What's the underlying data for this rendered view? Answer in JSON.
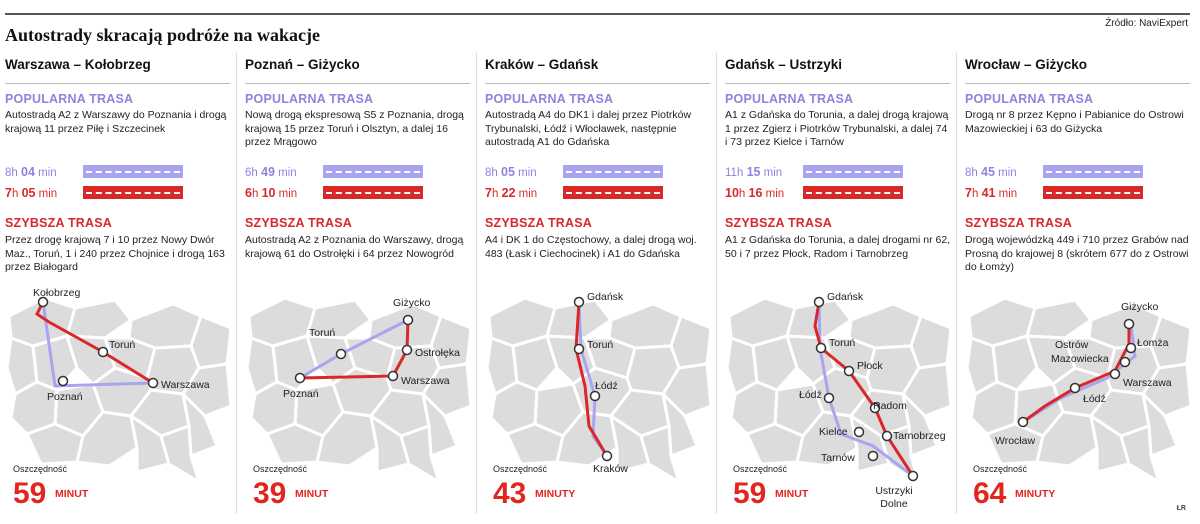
{
  "title": "Autostrady skracają podróże na wakacje",
  "source": "Źródło: NaviExpert",
  "credit": "ŁR",
  "labels": {
    "popular": "POPULARNA TRASA",
    "fast": "SZYBSZA TRASA",
    "savings": "Oszczędność"
  },
  "colors": {
    "popular": "#a9a4f0",
    "fast": "#d82828",
    "savings": "#e1261c",
    "map_tile": "#dcdcdc"
  },
  "routes": [
    {
      "title": "Warszawa – Kołobrzeg",
      "popular_desc": "Autostradą A2 z Warszawy do Poznania i drogą krajową 11 przez Piłę i Szczecinek",
      "popular_time": {
        "h": "8",
        "h_unit": "h",
        "m": "04",
        "m_unit": "min"
      },
      "fast_time": {
        "h": "7",
        "h_unit": "h",
        "m": "05",
        "m_unit": "min"
      },
      "fast_desc": "Przez drogę krajową 7 i 10 przez Nowy Dwór Maz., Toruń, 1 i 240 przez Chojnice i drogą 163 przez Białogard",
      "cities": [
        "Kołobrzeg",
        "Toruń",
        "Poznań",
        "Warszawa"
      ],
      "savings_value": "59",
      "savings_unit": "MINUT"
    },
    {
      "title": "Poznań – Giżycko",
      "popular_desc": "Nową drogą ekspresową S5 z Poznania, drogą krajową 15 przez Toruń i Olsztyn, a dalej 16 przez Mrągowo",
      "popular_time": {
        "h": "6",
        "h_unit": "h",
        "m": "49",
        "m_unit": "min"
      },
      "fast_time": {
        "h": "6",
        "h_unit": "h",
        "m": "10",
        "m_unit": "min"
      },
      "fast_desc": "Autostradą A2 z Poznania do Warszawy, drogą krajową 61 do Ostrołęki i 64 przez Nowogród",
      "cities": [
        "Giżycko",
        "Toruń",
        "Ostrołęka",
        "Poznań",
        "Warszawa"
      ],
      "savings_value": "39",
      "savings_unit": "MINUT"
    },
    {
      "title": "Kraków – Gdańsk",
      "popular_desc": "Autostradą A4 do DK1 i dalej przez Piotrków Trybunalski, Łódź i Włocławek, następnie autostradą A1 do Gdańska",
      "popular_time": {
        "h": "8",
        "h_unit": "h",
        "m": "05",
        "m_unit": "min"
      },
      "fast_time": {
        "h": "7",
        "h_unit": "h",
        "m": "22",
        "m_unit": "min"
      },
      "fast_desc": "A4 i DK 1 do Częstochowy, a dalej drogą woj. 483 (Łask i Ciechocinek) i A1 do Gdańska",
      "cities": [
        "Gdańsk",
        "Toruń",
        "Łódź",
        "Kraków"
      ],
      "savings_value": "43",
      "savings_unit": "MINUTY"
    },
    {
      "title": "Gdańsk – Ustrzyki",
      "popular_desc": "A1 z Gdańska do Torunia, a dalej drogą krajową 1 przez Zgierz i Piotrków Trybunalski, a dalej 74 i 73 przez Kielce i Tarnów",
      "popular_time": {
        "h": "11",
        "h_unit": "h",
        "m": "15",
        "m_unit": "min"
      },
      "fast_time": {
        "h": "10",
        "h_unit": "h",
        "m": "16",
        "m_unit": "min"
      },
      "fast_desc": "A1 z Gdańska do Torunia, a dalej drogami nr 62, 50 i 7 przez Płock, Radom i Tarnobrzeg",
      "cities": [
        "Gdańsk",
        "Toruń",
        "Płock",
        "Łódź",
        "Radom",
        "Kielce",
        "Tarnobrzeg",
        "Tarnów",
        "Ustrzyki",
        "Dolne"
      ],
      "savings_value": "59",
      "savings_unit": "MINUT"
    },
    {
      "title": "Wrocław – Giżycko",
      "popular_desc": "Drogą nr 8 przez Kępno i Pabianice do Ostrowi Mazowieckiej i 63 do Giżycka",
      "popular_time": {
        "h": "8",
        "h_unit": "h",
        "m": "45",
        "m_unit": "min"
      },
      "fast_time": {
        "h": "7",
        "h_unit": "h",
        "m": "41",
        "m_unit": "min"
      },
      "fast_desc": "Drogą wojewódzką 449 i 710 przez Grabów nad Prosną do krajowej 8 (skrótem 677 do z Ostrowi do Łomży)",
      "cities": [
        "Giżycko",
        "Ostrów",
        "Mazowiecka",
        "Łomża",
        "Warszawa",
        "Łódź",
        "Wrocław"
      ],
      "savings_value": "64",
      "savings_unit": "MINUTY"
    }
  ]
}
